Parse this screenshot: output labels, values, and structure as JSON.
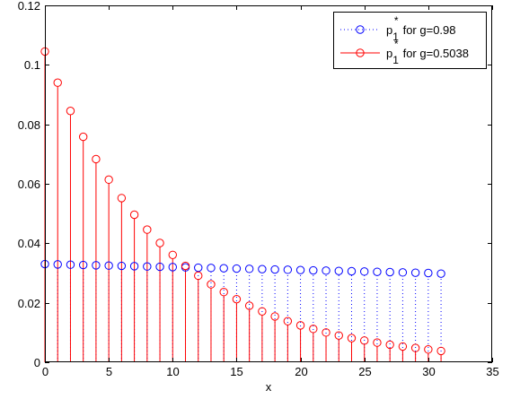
{
  "chart_data": {
    "type": "stem",
    "xlabel": "x",
    "ylabel": "",
    "xlim": [
      0,
      35
    ],
    "ylim": [
      0,
      0.12
    ],
    "xticks": [
      "0",
      "5",
      "10",
      "15",
      "20",
      "25",
      "30",
      "35"
    ],
    "yticks": [
      "0",
      "0.02",
      "0.04",
      "0.06",
      "0.08",
      "0.1",
      "0.12"
    ],
    "legend_position": "top-right",
    "legend_symbol": "p",
    "legend_subscript": "1",
    "legend_superscript": "*",
    "series": [
      {
        "label_suffix": "for g=0.98",
        "color": "#0000ff",
        "stem_style": "dotted",
        "x": [
          0,
          1,
          2,
          3,
          4,
          5,
          6,
          7,
          8,
          9,
          10,
          11,
          12,
          13,
          14,
          15,
          16,
          17,
          18,
          19,
          20,
          21,
          22,
          23,
          24,
          25,
          26,
          27,
          28,
          29,
          30,
          31
        ],
        "values": [
          0.033,
          0.0329,
          0.0328,
          0.0327,
          0.0326,
          0.0325,
          0.0324,
          0.0323,
          0.0322,
          0.0321,
          0.032,
          0.0319,
          0.0318,
          0.0317,
          0.0316,
          0.0315,
          0.0314,
          0.0313,
          0.0312,
          0.0311,
          0.031,
          0.0309,
          0.0308,
          0.0307,
          0.0306,
          0.0305,
          0.0304,
          0.0303,
          0.0302,
          0.0301,
          0.03,
          0.0298
        ]
      },
      {
        "label_suffix": "for g=0.5038",
        "color": "#ff0000",
        "stem_style": "solid",
        "x": [
          0,
          1,
          2,
          3,
          4,
          5,
          6,
          7,
          8,
          9,
          10,
          11,
          12,
          13,
          14,
          15,
          16,
          17,
          18,
          19,
          20,
          21,
          22,
          23,
          24,
          25,
          26,
          27,
          28,
          29,
          30,
          31
        ],
        "values": [
          0.1045,
          0.094,
          0.0845,
          0.0758,
          0.0683,
          0.0614,
          0.0552,
          0.0496,
          0.0446,
          0.0401,
          0.0361,
          0.0324,
          0.0291,
          0.0262,
          0.0236,
          0.0212,
          0.019,
          0.0171,
          0.0154,
          0.0138,
          0.0124,
          0.0112,
          0.01,
          0.009,
          0.0081,
          0.0073,
          0.0066,
          0.0059,
          0.0053,
          0.0048,
          0.0043,
          0.0038
        ]
      }
    ]
  }
}
